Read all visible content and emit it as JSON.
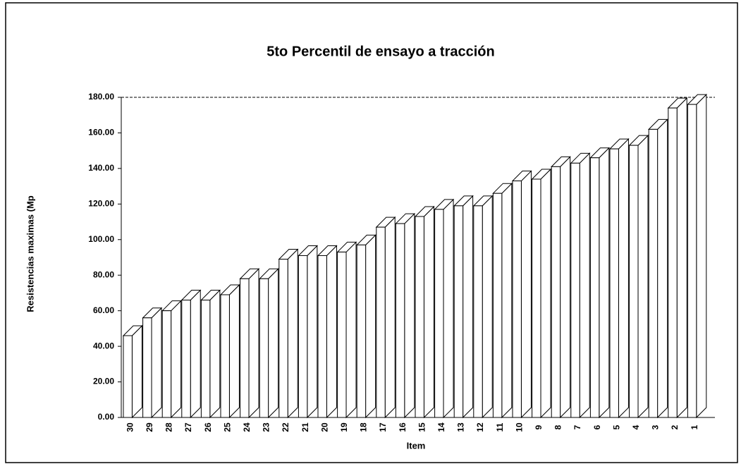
{
  "chart_data": {
    "type": "bar3d",
    "title": "5to Percentil de ensayo a tracción",
    "x_label": "Item",
    "y_label": "Resistencias maximas (Mp",
    "categories": [
      "30",
      "29",
      "28",
      "27",
      "26",
      "25",
      "24",
      "23",
      "22",
      "21",
      "20",
      "19",
      "18",
      "17",
      "16",
      "15",
      "14",
      "13",
      "12",
      "11",
      "10",
      "9",
      "8",
      "7",
      "6",
      "5",
      "4",
      "3",
      "2",
      "1"
    ],
    "values": [
      46,
      56,
      60,
      66,
      66,
      69,
      78,
      78,
      89,
      91,
      91,
      93,
      97,
      107,
      109,
      113,
      117,
      119,
      119,
      126,
      133,
      134,
      141,
      143,
      146,
      151,
      153,
      162,
      174,
      176
    ],
    "color": "#ffffff",
    "ylim": [
      0,
      180
    ],
    "yticks": [
      {
        "value": 0,
        "label": "0.00"
      },
      {
        "value": 20,
        "label": "20.00"
      },
      {
        "value": 40,
        "label": "40.00"
      },
      {
        "value": 60,
        "label": "60.00"
      },
      {
        "value": 80,
        "label": "80.00"
      },
      {
        "value": 100,
        "label": "100.00"
      },
      {
        "value": 120,
        "label": "120.00"
      },
      {
        "value": 140,
        "label": "140.00"
      },
      {
        "value": 160,
        "label": "160.00"
      },
      {
        "value": 180,
        "label": "180.00"
      }
    ]
  }
}
